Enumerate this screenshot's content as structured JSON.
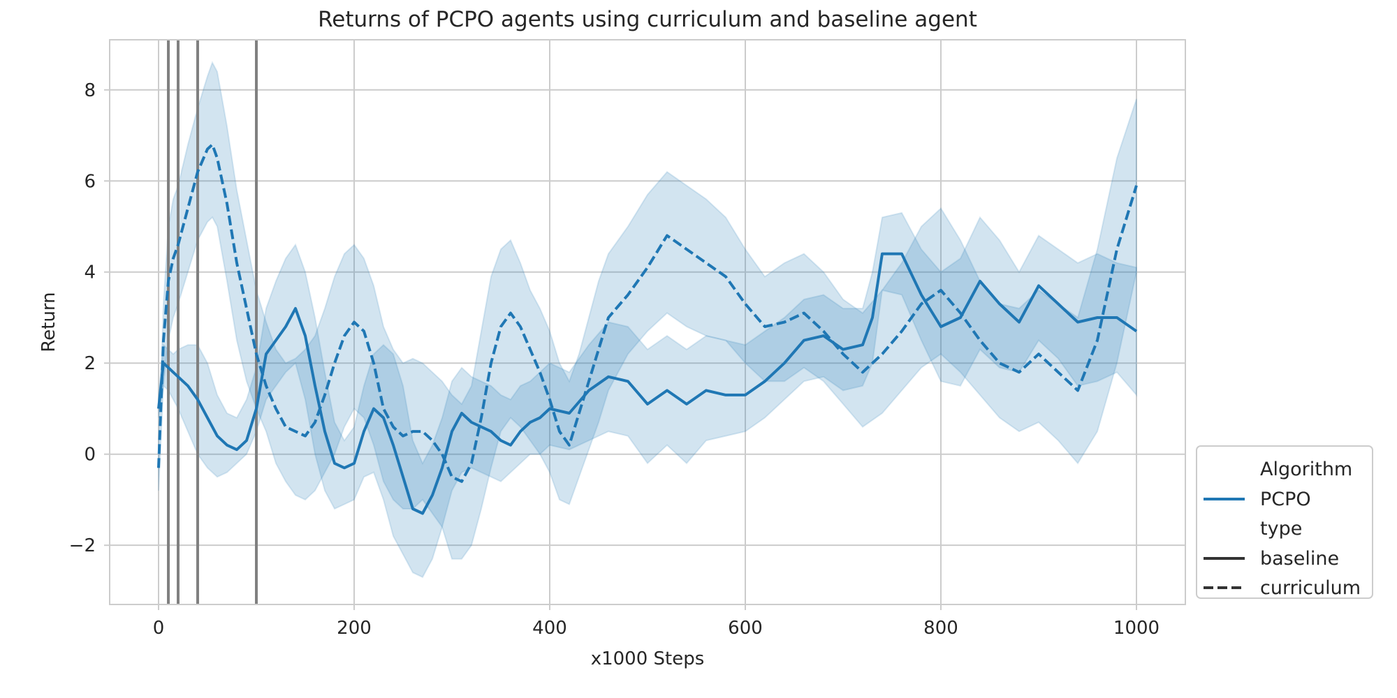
{
  "chart_data": {
    "type": "line",
    "title": "Returns of PCPO agents using curriculum and baseline agent",
    "xlabel": "x1000 Steps",
    "ylabel": "Return",
    "xlim": [
      -50,
      1050
    ],
    "ylim": [
      -3.3,
      9.1
    ],
    "xticks": [
      0,
      200,
      400,
      600,
      800,
      1000
    ],
    "yticks": [
      -2,
      0,
      2,
      4,
      6,
      8
    ],
    "xtick_labels": [
      "0",
      "200",
      "400",
      "600",
      "800",
      "1000"
    ],
    "ytick_labels": [
      "−2",
      "0",
      "2",
      "4",
      "6",
      "8"
    ],
    "grid": true,
    "vertical_lines": [
      10,
      20,
      40,
      100
    ],
    "legend": {
      "placement": "lower-right outside",
      "entries": [
        {
          "label": "Algorithm",
          "kind": "header"
        },
        {
          "label": "PCPO",
          "kind": "line",
          "color": "#1f77b4",
          "dash": "solid"
        },
        {
          "label": "type",
          "kind": "header"
        },
        {
          "label": "baseline",
          "kind": "line",
          "color": "#333333",
          "dash": "solid"
        },
        {
          "label": "curriculum",
          "kind": "line",
          "color": "#333333",
          "dash": "dashed"
        }
      ]
    },
    "series": [
      {
        "algorithm": "PCPO",
        "type": "baseline",
        "color": "#1f77b4",
        "dash": "solid",
        "x": [
          0,
          5,
          10,
          15,
          20,
          30,
          40,
          50,
          60,
          70,
          80,
          90,
          100,
          110,
          120,
          130,
          140,
          150,
          160,
          170,
          180,
          190,
          200,
          210,
          220,
          230,
          240,
          250,
          260,
          270,
          280,
          290,
          300,
          310,
          320,
          330,
          340,
          350,
          360,
          370,
          380,
          390,
          400,
          420,
          440,
          460,
          480,
          500,
          520,
          540,
          560,
          580,
          600,
          620,
          640,
          660,
          680,
          700,
          720,
          730,
          740,
          760,
          780,
          800,
          820,
          840,
          860,
          880,
          900,
          920,
          940,
          960,
          980,
          1000
        ],
        "y": [
          1.0,
          2.0,
          1.9,
          1.8,
          1.7,
          1.5,
          1.2,
          0.8,
          0.4,
          0.2,
          0.1,
          0.3,
          1.0,
          2.2,
          2.5,
          2.8,
          3.2,
          2.6,
          1.5,
          0.5,
          -0.2,
          -0.3,
          -0.2,
          0.5,
          1.0,
          0.8,
          0.2,
          -0.5,
          -1.2,
          -1.3,
          -0.9,
          -0.3,
          0.5,
          0.9,
          0.7,
          0.6,
          0.5,
          0.3,
          0.2,
          0.5,
          0.7,
          0.8,
          1.0,
          0.9,
          1.4,
          1.7,
          1.6,
          1.1,
          1.4,
          1.1,
          1.4,
          1.3,
          1.3,
          1.6,
          2.0,
          2.5,
          2.6,
          2.3,
          2.4,
          3.0,
          4.4,
          4.4,
          3.5,
          2.8,
          3.0,
          3.8,
          3.3,
          2.9,
          3.7,
          3.3,
          2.9,
          3.0,
          3.0,
          2.7
        ],
        "lower": [
          0.8,
          1.5,
          1.4,
          1.2,
          1.0,
          0.5,
          0.0,
          -0.3,
          -0.5,
          -0.4,
          -0.2,
          0.0,
          0.5,
          1.2,
          1.5,
          1.8,
          2.0,
          1.2,
          0.0,
          -0.8,
          -1.2,
          -1.1,
          -1.0,
          -0.5,
          -0.4,
          -1.0,
          -1.8,
          -2.2,
          -2.6,
          -2.7,
          -2.3,
          -1.6,
          -0.8,
          -0.4,
          -0.3,
          -0.4,
          -0.5,
          -0.6,
          -0.4,
          -0.2,
          0.0,
          0.0,
          0.2,
          0.1,
          0.3,
          0.5,
          0.4,
          -0.2,
          0.2,
          -0.2,
          0.3,
          0.4,
          0.5,
          0.8,
          1.2,
          1.6,
          1.7,
          1.4,
          1.5,
          2.0,
          3.6,
          3.5,
          2.5,
          1.6,
          1.5,
          2.3,
          1.9,
          1.8,
          2.5,
          2.1,
          1.5,
          1.6,
          1.8,
          1.3
        ],
        "upper": [
          1.3,
          2.4,
          2.3,
          2.2,
          2.3,
          2.4,
          2.4,
          2.0,
          1.3,
          0.9,
          0.8,
          1.2,
          1.9,
          3.2,
          3.8,
          4.3,
          4.6,
          4.0,
          3.0,
          1.8,
          0.7,
          0.3,
          0.6,
          1.5,
          2.2,
          2.4,
          2.2,
          1.5,
          0.3,
          -0.2,
          0.2,
          0.8,
          1.6,
          1.9,
          1.7,
          1.6,
          1.5,
          1.3,
          1.2,
          1.5,
          1.6,
          1.8,
          2.0,
          1.8,
          2.4,
          2.9,
          2.8,
          2.3,
          2.6,
          2.3,
          2.6,
          2.5,
          2.4,
          2.7,
          3.0,
          3.4,
          3.5,
          3.2,
          3.2,
          4.0,
          5.2,
          5.3,
          4.5,
          4.0,
          4.3,
          5.2,
          4.7,
          4.0,
          4.8,
          4.5,
          4.2,
          4.4,
          4.2,
          4.1
        ]
      },
      {
        "algorithm": "PCPO",
        "type": "curriculum",
        "color": "#1f77b4",
        "dash": "dashed",
        "x": [
          0,
          5,
          10,
          15,
          20,
          30,
          40,
          50,
          55,
          60,
          70,
          80,
          90,
          100,
          110,
          120,
          130,
          140,
          150,
          160,
          170,
          180,
          190,
          200,
          210,
          220,
          230,
          240,
          250,
          260,
          270,
          280,
          290,
          300,
          310,
          320,
          330,
          340,
          350,
          360,
          370,
          380,
          390,
          400,
          410,
          420,
          430,
          440,
          450,
          460,
          480,
          500,
          520,
          540,
          560,
          580,
          600,
          620,
          640,
          660,
          680,
          700,
          720,
          740,
          760,
          780,
          800,
          820,
          840,
          860,
          880,
          900,
          920,
          940,
          960,
          980,
          1000
        ],
        "y": [
          -0.3,
          2.5,
          3.8,
          4.3,
          4.6,
          5.4,
          6.2,
          6.7,
          6.8,
          6.5,
          5.5,
          4.2,
          3.2,
          2.2,
          1.5,
          1.0,
          0.6,
          0.5,
          0.4,
          0.7,
          1.3,
          2.0,
          2.6,
          2.9,
          2.7,
          2.0,
          1.0,
          0.6,
          0.4,
          0.5,
          0.5,
          0.3,
          0.0,
          -0.5,
          -0.6,
          -0.2,
          0.8,
          2.0,
          2.8,
          3.1,
          2.8,
          2.3,
          1.8,
          1.2,
          0.5,
          0.2,
          0.9,
          1.6,
          2.3,
          3.0,
          3.5,
          4.1,
          4.8,
          4.5,
          4.2,
          3.9,
          3.3,
          2.8,
          2.9,
          3.1,
          2.7,
          2.2,
          1.8,
          2.2,
          2.7,
          3.3,
          3.6,
          3.1,
          2.5,
          2.0,
          1.8,
          2.2,
          1.8,
          1.4,
          2.5,
          4.5,
          5.9
        ],
        "lower": [
          -0.8,
          1.5,
          2.5,
          3.0,
          3.3,
          4.0,
          4.7,
          5.1,
          5.2,
          5.0,
          3.8,
          2.5,
          1.6,
          1.0,
          0.5,
          -0.2,
          -0.6,
          -0.9,
          -1.0,
          -0.8,
          -0.4,
          0.0,
          0.6,
          1.0,
          0.8,
          0.2,
          -0.6,
          -1.0,
          -1.2,
          -1.2,
          -1.0,
          -1.3,
          -1.6,
          -2.3,
          -2.3,
          -2.0,
          -1.2,
          -0.3,
          0.5,
          0.8,
          0.6,
          0.3,
          0.0,
          -0.4,
          -1.0,
          -1.1,
          -0.5,
          0.1,
          0.7,
          1.4,
          2.2,
          2.7,
          3.1,
          2.8,
          2.6,
          2.5,
          2.0,
          1.6,
          1.6,
          1.9,
          1.6,
          1.1,
          0.6,
          0.9,
          1.4,
          1.9,
          2.2,
          1.8,
          1.3,
          0.8,
          0.5,
          0.7,
          0.3,
          -0.2,
          0.5,
          2.0,
          4.0
        ],
        "upper": [
          0.2,
          3.3,
          5.0,
          5.6,
          5.9,
          6.8,
          7.6,
          8.3,
          8.6,
          8.4,
          7.2,
          5.8,
          4.7,
          3.6,
          2.9,
          2.3,
          2.0,
          2.1,
          2.3,
          2.6,
          3.2,
          3.9,
          4.4,
          4.6,
          4.3,
          3.7,
          2.8,
          2.3,
          2.0,
          2.1,
          2.0,
          1.8,
          1.6,
          1.3,
          1.1,
          1.5,
          2.7,
          3.9,
          4.5,
          4.7,
          4.2,
          3.6,
          3.2,
          2.7,
          2.0,
          1.6,
          2.2,
          3.0,
          3.8,
          4.4,
          5.0,
          5.7,
          6.2,
          5.9,
          5.6,
          5.2,
          4.5,
          3.9,
          4.2,
          4.4,
          4.0,
          3.4,
          3.1,
          3.6,
          4.2,
          5.0,
          5.4,
          4.7,
          3.8,
          3.3,
          3.2,
          3.6,
          3.3,
          3.0,
          4.5,
          6.5,
          7.8
        ]
      }
    ]
  }
}
